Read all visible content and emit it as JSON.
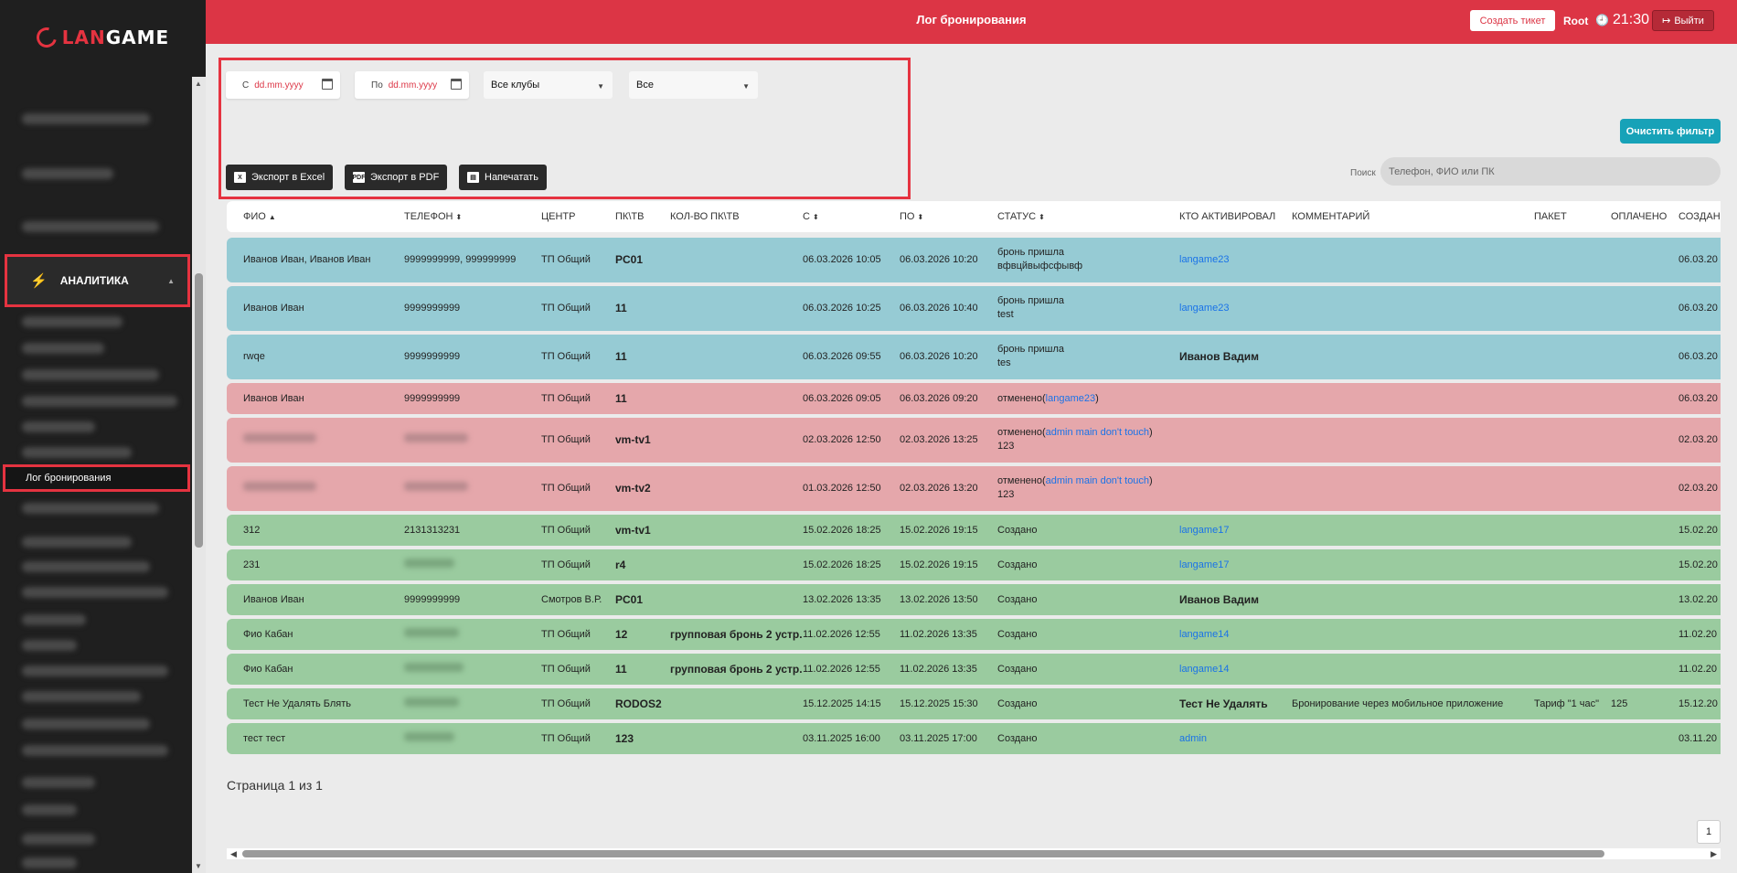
{
  "brand": {
    "part1": "LAN",
    "part2": "GAME"
  },
  "header": {
    "title": "Лог бронирования",
    "create_ticket": "Создать тикет",
    "user": "Root",
    "time": "21:30",
    "logout": "Выйти"
  },
  "sidebar": {
    "analytics": "АНАЛИТИКА",
    "booking_log": "Лог бронирования"
  },
  "filters": {
    "from_label": "С",
    "from_placeholder": "dd.mm.yyyy",
    "to_label": "По",
    "to_placeholder": "dd.mm.yyyy",
    "clubs": "Все клубы",
    "status": "Все",
    "export_excel": "Экспорт в Excel",
    "export_pdf": "Экспорт в PDF",
    "print": "Напечатать",
    "clear": "Очистить фильтр",
    "search_label": "Поиск",
    "search_placeholder": "Телефон, ФИО или ПК"
  },
  "table": {
    "headers": [
      "ФИО",
      "ТЕЛЕФОН",
      "ЦЕНТР",
      "ПК\\ТВ",
      "КОЛ-ВО ПК\\ТВ",
      "С",
      "ПО",
      "СТАТУС",
      "КТО АКТИВИРОВАЛ",
      "КОММЕНТАРИЙ",
      "ПАКЕТ",
      "ОПЛАЧЕНО",
      "СОЗДАН"
    ],
    "rows": [
      {
        "fio": "Иванов Иван, Иванов Иван",
        "phone": "9999999999, 999999999",
        "center": "ТП Общий",
        "pc": "PC01",
        "count": "",
        "from": "06.03.2026 10:05",
        "to": "06.03.2026 10:20",
        "status1": "бронь пришла",
        "status2": "вфвцйвыфсфывф",
        "status_link": "",
        "activated": "langame23",
        "comment": "",
        "package": "",
        "paid": "",
        "created": "06.03.20"
      },
      {
        "fio": "Иванов Иван",
        "phone": "9999999999",
        "center": "ТП Общий",
        "pc": "11",
        "count": "",
        "from": "06.03.2026 10:25",
        "to": "06.03.2026 10:40",
        "status1": "бронь пришла",
        "status2": "test",
        "status_link": "",
        "activated": "langame23",
        "comment": "",
        "package": "",
        "paid": "",
        "created": "06.03.20"
      },
      {
        "fio": "rwqe",
        "phone": "9999999999",
        "center": "ТП Общий",
        "pc": "11",
        "count": "",
        "from": "06.03.2026 09:55",
        "to": "06.03.2026 10:20",
        "status1": "бронь пришла",
        "status2": "tes",
        "status_link": "",
        "activated": "Иванов Вадим",
        "comment": "",
        "package": "",
        "paid": "",
        "created": "06.03.20"
      },
      {
        "fio": "Иванов Иван",
        "phone": "9999999999",
        "center": "ТП Общий",
        "pc": "11",
        "count": "",
        "from": "06.03.2026 09:05",
        "to": "06.03.2026 09:20",
        "status1": "отменено(",
        "status2": "",
        "status_link": "langame23",
        "activated": "",
        "comment": "",
        "package": "",
        "paid": "",
        "created": "06.03.20"
      },
      {
        "fio": "",
        "phone": "",
        "center": "ТП Общий",
        "pc": "vm-tv1",
        "count": "",
        "from": "02.03.2026 12:50",
        "to": "02.03.2026 13:25",
        "status1": "отменено(",
        "status2": "123",
        "status_link": "admin main don't touch",
        "activated": "",
        "comment": "",
        "package": "",
        "paid": "",
        "created": "02.03.20"
      },
      {
        "fio": "",
        "phone": "",
        "center": "ТП Общий",
        "pc": "vm-tv2",
        "count": "",
        "from": "01.03.2026 12:50",
        "to": "02.03.2026 13:20",
        "status1": "отменено(",
        "status2": "123",
        "status_link": "admin main don't touch",
        "activated": "",
        "comment": "",
        "package": "",
        "paid": "",
        "created": "02.03.20"
      },
      {
        "fio": "312",
        "phone": "2131313231",
        "center": "ТП Общий",
        "pc": "vm-tv1",
        "count": "",
        "from": "15.02.2026 18:25",
        "to": "15.02.2026 19:15",
        "status1": "Создано",
        "status2": "",
        "status_link": "",
        "activated": "langame17",
        "comment": "",
        "package": "",
        "paid": "",
        "created": "15.02.20"
      },
      {
        "fio": "231",
        "phone": "",
        "center": "ТП Общий",
        "pc": "r4",
        "count": "",
        "from": "15.02.2026 18:25",
        "to": "15.02.2026 19:15",
        "status1": "Создано",
        "status2": "",
        "status_link": "",
        "activated": "langame17",
        "comment": "",
        "package": "",
        "paid": "",
        "created": "15.02.20"
      },
      {
        "fio": "Иванов Иван",
        "phone": "9999999999",
        "center": "Смотров В.Р.",
        "pc": "PC01",
        "count": "",
        "from": "13.02.2026 13:35",
        "to": "13.02.2026 13:50",
        "status1": "Создано",
        "status2": "",
        "status_link": "",
        "activated": "Иванов Вадим",
        "comment": "",
        "package": "",
        "paid": "",
        "created": "13.02.20"
      },
      {
        "fio": "Фио Кабан",
        "phone": "",
        "center": "ТП Общий",
        "pc": "12",
        "count": "групповая бронь 2 устр.",
        "from": "11.02.2026 12:55",
        "to": "11.02.2026 13:35",
        "status1": "Создано",
        "status2": "",
        "status_link": "",
        "activated": "langame14",
        "comment": "",
        "package": "",
        "paid": "",
        "created": "11.02.20"
      },
      {
        "fio": "Фио Кабан",
        "phone": "",
        "center": "ТП Общий",
        "pc": "11",
        "count": "групповая бронь 2 устр.",
        "from": "11.02.2026 12:55",
        "to": "11.02.2026 13:35",
        "status1": "Создано",
        "status2": "",
        "status_link": "",
        "activated": "langame14",
        "comment": "",
        "package": "",
        "paid": "",
        "created": "11.02.20"
      },
      {
        "fio": "Тест Не Удалять Блять",
        "phone": "",
        "center": "ТП Общий",
        "pc": "RODOS2",
        "count": "",
        "from": "15.12.2025 14:15",
        "to": "15.12.2025 15:30",
        "status1": "Создано",
        "status2": "",
        "status_link": "",
        "activated": "Тест Не Удалять",
        "comment": "Бронирование через мобильное приложение",
        "package": "Тариф \"1 час\"",
        "paid": "125",
        "created": "15.12.20"
      },
      {
        "fio": "тест тест",
        "phone": "",
        "center": "ТП Общий",
        "pc": "123",
        "count": "",
        "from": "03.11.2025 16:00",
        "to": "03.11.2025 17:00",
        "status1": "Создано",
        "status2": "",
        "status_link": "",
        "activated": "admin",
        "comment": "",
        "package": "",
        "paid": "",
        "created": "03.11.20"
      }
    ]
  },
  "pagination": {
    "info": "Страница 1 из 1",
    "current": "1"
  },
  "colors": {
    "primary": "#dc3545",
    "accent": "#17a2b8",
    "row_blue": "#96cbd4",
    "row_red": "#e5a7ab",
    "row_green": "#9acb9f",
    "link": "#1a73e8"
  }
}
